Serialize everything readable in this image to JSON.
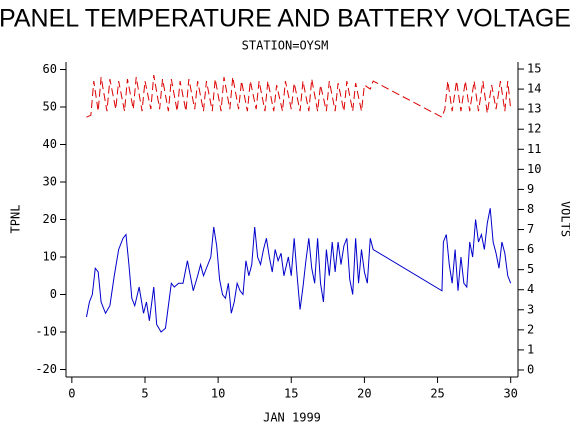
{
  "chart_data": {
    "type": "line",
    "title": "PANEL TEMPERATURE AND BATTERY VOLTAGE",
    "subtitle": "STATION=OYSM",
    "x_label": "JAN 1999",
    "y_label": "TPNL",
    "y2_label": "VOLTS",
    "xlim": [
      -0.4,
      30.5
    ],
    "xticks": [
      0,
      5,
      10,
      15,
      20,
      25,
      30
    ],
    "ylim": [
      -22,
      62
    ],
    "yticks": [
      -20,
      -10,
      0,
      10,
      20,
      30,
      40,
      50,
      60
    ],
    "y2lim": [
      -0.35,
      15.35
    ],
    "y2ticks": [
      0,
      1,
      2,
      3,
      4,
      5,
      6,
      7,
      8,
      9,
      10,
      11,
      12,
      13,
      14,
      15
    ],
    "series": [
      {
        "name": "TPNL",
        "color": "#0000cc",
        "axis": "y",
        "dashed": false,
        "x": [
          1.0,
          1.2,
          1.4,
          1.6,
          1.8,
          2.0,
          2.3,
          2.6,
          2.9,
          3.2,
          3.5,
          3.7,
          3.9,
          4.1,
          4.3,
          4.6,
          4.9,
          5.1,
          5.3,
          5.6,
          5.8,
          6.1,
          6.4,
          6.6,
          6.8,
          7.0,
          7.3,
          7.6,
          7.9,
          8.1,
          8.3,
          8.6,
          8.8,
          9.0,
          9.2,
          9.5,
          9.7,
          9.9,
          10.1,
          10.3,
          10.5,
          10.7,
          10.9,
          11.1,
          11.3,
          11.5,
          11.7,
          11.9,
          12.1,
          12.3,
          12.5,
          12.7,
          12.9,
          13.1,
          13.3,
          13.5,
          13.7,
          13.9,
          14.1,
          14.3,
          14.5,
          14.8,
          15.0,
          15.2,
          15.4,
          15.6,
          15.8,
          16.0,
          16.2,
          16.4,
          16.6,
          16.8,
          17.0,
          17.2,
          17.4,
          17.6,
          17.8,
          18.0,
          18.2,
          18.4,
          18.6,
          18.8,
          19.0,
          19.2,
          19.4,
          19.6,
          19.8,
          20.0,
          20.2,
          20.4,
          20.6,
          25.3,
          25.4,
          25.6,
          25.8,
          26.0,
          26.2,
          26.4,
          26.6,
          26.8,
          27.0,
          27.2,
          27.4,
          27.6,
          27.8,
          28.0,
          28.2,
          28.4,
          28.6,
          28.8,
          29.0,
          29.2,
          29.4,
          29.6,
          29.8,
          30.0
        ],
        "values": [
          -6,
          -2,
          0,
          7,
          6,
          -2,
          -5,
          -3,
          5,
          12,
          15,
          16,
          8,
          -1,
          -3,
          2,
          -5,
          -2,
          -7,
          2,
          -8,
          -10,
          -9,
          -3,
          3,
          2,
          3,
          3,
          9,
          5,
          1,
          5,
          8,
          5,
          7,
          10,
          18,
          13,
          4,
          0,
          -1,
          3,
          -5,
          -2,
          3,
          1,
          0,
          9,
          5,
          8,
          18,
          10,
          8,
          12,
          15,
          10,
          6,
          12,
          9,
          11,
          5,
          10,
          5,
          15,
          5,
          -4,
          2,
          9,
          15,
          7,
          3,
          15,
          3,
          -2,
          12,
          5,
          14,
          6,
          14,
          8,
          13,
          15,
          4,
          0,
          15,
          3,
          12,
          6,
          3,
          15,
          12,
          1,
          14,
          16,
          8,
          3,
          12,
          1,
          10,
          3,
          2,
          14,
          10,
          20,
          14,
          16,
          12,
          19,
          23,
          14,
          11,
          7,
          14,
          11,
          5,
          3
        ]
      },
      {
        "name": "VOLTS",
        "color": "#dd0000",
        "axis": "y2",
        "dashed": true,
        "x": [
          1.0,
          1.3,
          1.5,
          1.8,
          2.0,
          2.4,
          2.6,
          3.0,
          3.2,
          3.6,
          3.8,
          4.2,
          4.4,
          4.8,
          5.0,
          5.4,
          5.6,
          6.0,
          6.2,
          6.6,
          6.8,
          7.2,
          7.4,
          7.8,
          8.0,
          8.4,
          8.6,
          9.0,
          9.2,
          9.6,
          9.8,
          10.2,
          10.4,
          10.8,
          11.0,
          11.4,
          11.6,
          12.0,
          12.2,
          12.6,
          12.8,
          13.2,
          13.4,
          13.8,
          14.0,
          14.4,
          14.6,
          15.0,
          15.2,
          15.6,
          15.8,
          16.2,
          16.4,
          16.8,
          17.0,
          17.4,
          17.6,
          18.0,
          18.2,
          18.6,
          18.8,
          19.2,
          19.4,
          19.8,
          20.0,
          20.4,
          20.6,
          25.3,
          25.5,
          25.7,
          26.0,
          26.3,
          26.6,
          26.9,
          27.2,
          27.5,
          27.8,
          28.1,
          28.4,
          28.7,
          29.0,
          29.3,
          29.6,
          29.8,
          30.0
        ],
        "values": [
          12.6,
          12.7,
          14.4,
          12.9,
          14.6,
          12.9,
          14.5,
          13.0,
          14.4,
          12.9,
          14.5,
          13.0,
          14.6,
          12.9,
          14.4,
          13.0,
          14.7,
          13.0,
          14.5,
          12.9,
          14.5,
          12.9,
          14.4,
          12.9,
          14.5,
          13.0,
          14.4,
          12.9,
          14.4,
          12.9,
          14.5,
          12.9,
          14.6,
          13.0,
          14.6,
          13.0,
          14.4,
          12.9,
          14.4,
          13.0,
          14.4,
          12.9,
          14.4,
          12.9,
          14.2,
          12.9,
          14.4,
          13.0,
          14.3,
          12.9,
          14.4,
          12.9,
          14.5,
          12.9,
          14.2,
          12.9,
          14.4,
          12.9,
          14.3,
          12.9,
          14.4,
          12.9,
          14.3,
          12.9,
          14.2,
          14.0,
          14.4,
          12.6,
          13.0,
          14.4,
          12.9,
          14.4,
          12.9,
          14.4,
          12.9,
          14.4,
          12.9,
          14.4,
          12.8,
          14.2,
          13.0,
          14.4,
          12.9,
          14.4,
          13.0
        ]
      }
    ]
  }
}
